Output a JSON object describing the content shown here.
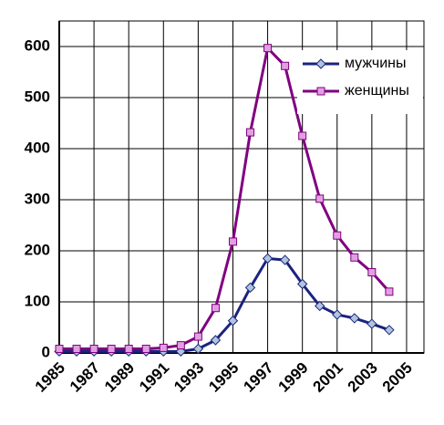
{
  "chart_data": {
    "type": "line",
    "x": [
      1985,
      1986,
      1987,
      1988,
      1989,
      1990,
      1991,
      1992,
      1993,
      1994,
      1995,
      1996,
      1997,
      1998,
      1999,
      2000,
      2001,
      2002,
      2003,
      2004
    ],
    "series": [
      {
        "name": "мужчины",
        "color": "#1a237e",
        "marker_color": "#b0c4de",
        "marker": "diamond",
        "values": [
          3,
          3,
          3,
          3,
          3,
          3,
          3,
          3,
          8,
          25,
          63,
          128,
          185,
          182,
          135,
          92,
          75,
          68,
          57,
          45
        ]
      },
      {
        "name": "женщины",
        "color": "#800080",
        "marker_color": "#e0a0e0",
        "marker": "square",
        "values": [
          8,
          8,
          8,
          8,
          8,
          8,
          10,
          15,
          32,
          88,
          218,
          432,
          597,
          562,
          425,
          302,
          230,
          187,
          158,
          120
        ]
      }
    ],
    "xlim": [
      1985,
      2006
    ],
    "xticks": [
      1985,
      1987,
      1989,
      1991,
      1993,
      1995,
      1997,
      1999,
      2001,
      2003,
      2005
    ],
    "ylim": [
      0,
      650
    ],
    "yticks": [
      0,
      100,
      200,
      300,
      400,
      500,
      600
    ],
    "grid": true,
    "legend": "upper right"
  }
}
